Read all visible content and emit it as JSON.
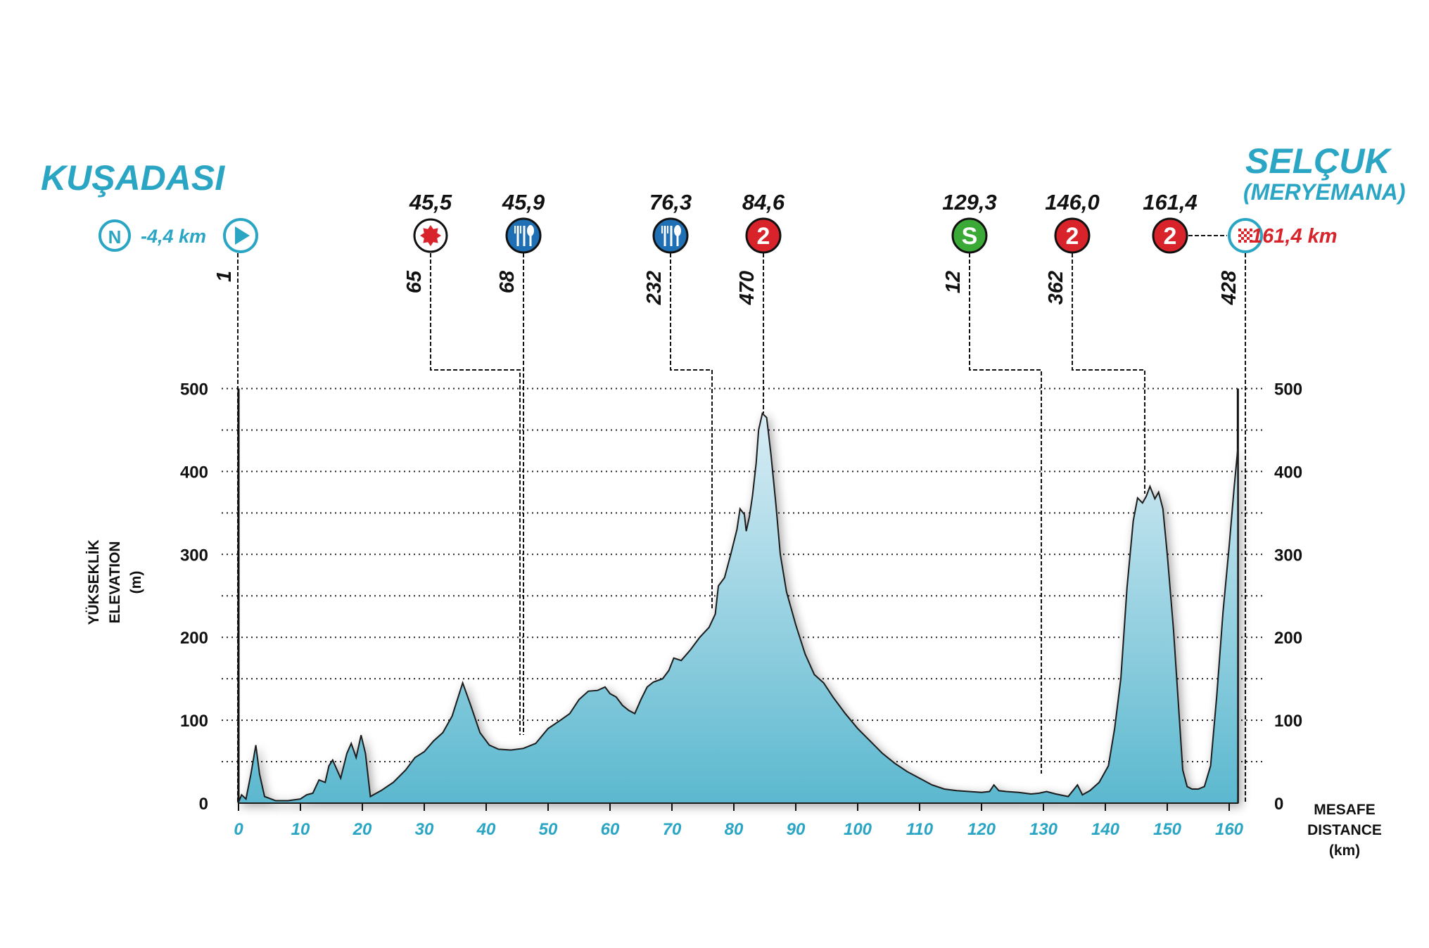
{
  "start": {
    "city": "KUŞADASI",
    "neutral_symbol": "N",
    "neutral_distance": "-4,4 km"
  },
  "finish": {
    "city": "SELÇUK",
    "subtitle": "(MERYEMANA)",
    "distance": "161,4 km"
  },
  "y_axis_title": [
    "YÜKSEKLİK",
    "ELEVATION",
    "(m)"
  ],
  "x_axis_title": [
    "MESAFE",
    "DISTANCE",
    "(km)"
  ],
  "markers": [
    {
      "id": "start",
      "type": "start",
      "km": 0,
      "altitude": "1",
      "km_label": ""
    },
    {
      "id": "bonus",
      "type": "bonus-sprint",
      "km": 45.5,
      "km_label": "45,5",
      "altitude": "65"
    },
    {
      "id": "feed1",
      "type": "feed-zone",
      "km": 45.9,
      "km_label": "45,9",
      "altitude": "68"
    },
    {
      "id": "feed2",
      "type": "feed-zone",
      "km": 76.3,
      "km_label": "76,3",
      "altitude": "232"
    },
    {
      "id": "kom1",
      "type": "kom-cat2",
      "km": 84.6,
      "km_label": "84,6",
      "altitude": "470",
      "symbol": "2"
    },
    {
      "id": "sprint",
      "type": "intermediate-sprint",
      "km": 129.3,
      "km_label": "129,3",
      "altitude": "12",
      "symbol": "S"
    },
    {
      "id": "kom2",
      "type": "kom-cat2",
      "km": 146.0,
      "km_label": "146,0",
      "altitude": "362",
      "symbol": "2"
    },
    {
      "id": "kom3",
      "type": "kom-cat2",
      "km": 161.4,
      "km_label": "161,4",
      "altitude": "",
      "symbol": "2"
    },
    {
      "id": "finish",
      "type": "finish",
      "km": 161.4,
      "altitude": "428",
      "km_label": ""
    }
  ],
  "colors": {
    "accent": "#2aa6c4",
    "kom_red": "#d8232a",
    "sprint_green": "#3aa935",
    "feed_blue": "#1f6fb5",
    "area_top": "#d9edf5",
    "area_bottom": "#5bb8cf"
  },
  "chart_data": {
    "type": "area",
    "title": "",
    "xlabel": "MESAFE DISTANCE (km)",
    "ylabel": "YÜKSEKLİK ELEVATION (m)",
    "xlim": [
      0,
      161.4
    ],
    "ylim": [
      0,
      500
    ],
    "x_ticks": [
      0,
      10,
      20,
      30,
      40,
      50,
      60,
      70,
      80,
      90,
      100,
      110,
      120,
      130,
      140,
      150,
      160
    ],
    "y_ticks": [
      0,
      100,
      200,
      300,
      400,
      500
    ],
    "grid": "horizontal dotted every 50 m",
    "series": [
      {
        "values": [
          [
            0,
            1
          ],
          [
            0.5,
            10
          ],
          [
            1.2,
            5
          ],
          [
            2,
            35
          ],
          [
            2.8,
            70
          ],
          [
            3.4,
            35
          ],
          [
            4.2,
            8
          ],
          [
            6,
            3
          ],
          [
            8,
            3
          ],
          [
            10,
            5
          ],
          [
            11,
            10
          ],
          [
            12,
            12
          ],
          [
            13,
            28
          ],
          [
            14,
            25
          ],
          [
            14.6,
            45
          ],
          [
            15.2,
            52
          ],
          [
            15.8,
            42
          ],
          [
            16.5,
            30
          ],
          [
            17.5,
            60
          ],
          [
            18.2,
            72
          ],
          [
            19,
            55
          ],
          [
            19.8,
            82
          ],
          [
            20.5,
            60
          ],
          [
            21.3,
            8
          ],
          [
            23,
            15
          ],
          [
            25,
            25
          ],
          [
            27,
            40
          ],
          [
            28.5,
            55
          ],
          [
            30,
            62
          ],
          [
            31.5,
            75
          ],
          [
            33,
            85
          ],
          [
            34.5,
            105
          ],
          [
            36.2,
            145
          ],
          [
            37.5,
            118
          ],
          [
            39,
            85
          ],
          [
            40.5,
            70
          ],
          [
            42,
            65
          ],
          [
            44,
            64
          ],
          [
            46,
            66
          ],
          [
            48,
            72
          ],
          [
            50,
            90
          ],
          [
            52,
            100
          ],
          [
            53.5,
            108
          ],
          [
            55,
            125
          ],
          [
            56.5,
            135
          ],
          [
            58,
            136
          ],
          [
            59.2,
            140
          ],
          [
            60,
            132
          ],
          [
            61,
            128
          ],
          [
            62,
            118
          ],
          [
            63,
            112
          ],
          [
            64,
            108
          ],
          [
            65,
            125
          ],
          [
            66,
            140
          ],
          [
            67,
            146
          ],
          [
            68.5,
            150
          ],
          [
            69.5,
            160
          ],
          [
            70.3,
            175
          ],
          [
            71.5,
            172
          ],
          [
            73,
            185
          ],
          [
            74.5,
            200
          ],
          [
            76,
            212
          ],
          [
            77,
            228
          ],
          [
            77.5,
            262
          ],
          [
            78.5,
            272
          ],
          [
            79.5,
            300
          ],
          [
            80.5,
            330
          ],
          [
            81,
            355
          ],
          [
            81.7,
            348
          ],
          [
            82,
            328
          ],
          [
            82.5,
            345
          ],
          [
            83,
            370
          ],
          [
            83.6,
            410
          ],
          [
            84,
            450
          ],
          [
            84.6,
            470
          ],
          [
            85.3,
            465
          ],
          [
            86,
            420
          ],
          [
            86.8,
            360
          ],
          [
            87.5,
            300
          ],
          [
            88.5,
            255
          ],
          [
            90,
            215
          ],
          [
            91.5,
            180
          ],
          [
            93,
            155
          ],
          [
            94.5,
            145
          ],
          [
            96,
            128
          ],
          [
            98,
            108
          ],
          [
            100,
            90
          ],
          [
            102,
            75
          ],
          [
            104,
            60
          ],
          [
            106,
            48
          ],
          [
            108,
            38
          ],
          [
            110,
            30
          ],
          [
            112,
            22
          ],
          [
            114,
            17
          ],
          [
            116,
            15
          ],
          [
            118,
            14
          ],
          [
            120,
            13
          ],
          [
            121.3,
            14
          ],
          [
            122,
            22
          ],
          [
            122.8,
            15
          ],
          [
            124,
            14
          ],
          [
            126,
            13
          ],
          [
            128,
            11
          ],
          [
            129.3,
            12
          ],
          [
            130.5,
            14
          ],
          [
            132,
            11
          ],
          [
            134,
            8
          ],
          [
            135.5,
            22
          ],
          [
            136.3,
            10
          ],
          [
            137.5,
            15
          ],
          [
            139,
            25
          ],
          [
            140.5,
            45
          ],
          [
            141.5,
            90
          ],
          [
            142.5,
            150
          ],
          [
            143.5,
            260
          ],
          [
            144.5,
            340
          ],
          [
            145.2,
            368
          ],
          [
            146,
            362
          ],
          [
            146.6,
            370
          ],
          [
            147.2,
            382
          ],
          [
            148,
            367
          ],
          [
            148.6,
            375
          ],
          [
            149.3,
            355
          ],
          [
            150,
            300
          ],
          [
            151,
            210
          ],
          [
            151.8,
            120
          ],
          [
            152.5,
            40
          ],
          [
            153.2,
            20
          ],
          [
            154,
            17
          ],
          [
            155,
            17
          ],
          [
            156,
            20
          ],
          [
            157,
            45
          ],
          [
            158,
            130
          ],
          [
            159,
            230
          ],
          [
            160,
            310
          ],
          [
            160.8,
            380
          ],
          [
            161.4,
            428
          ]
        ]
      }
    ]
  }
}
